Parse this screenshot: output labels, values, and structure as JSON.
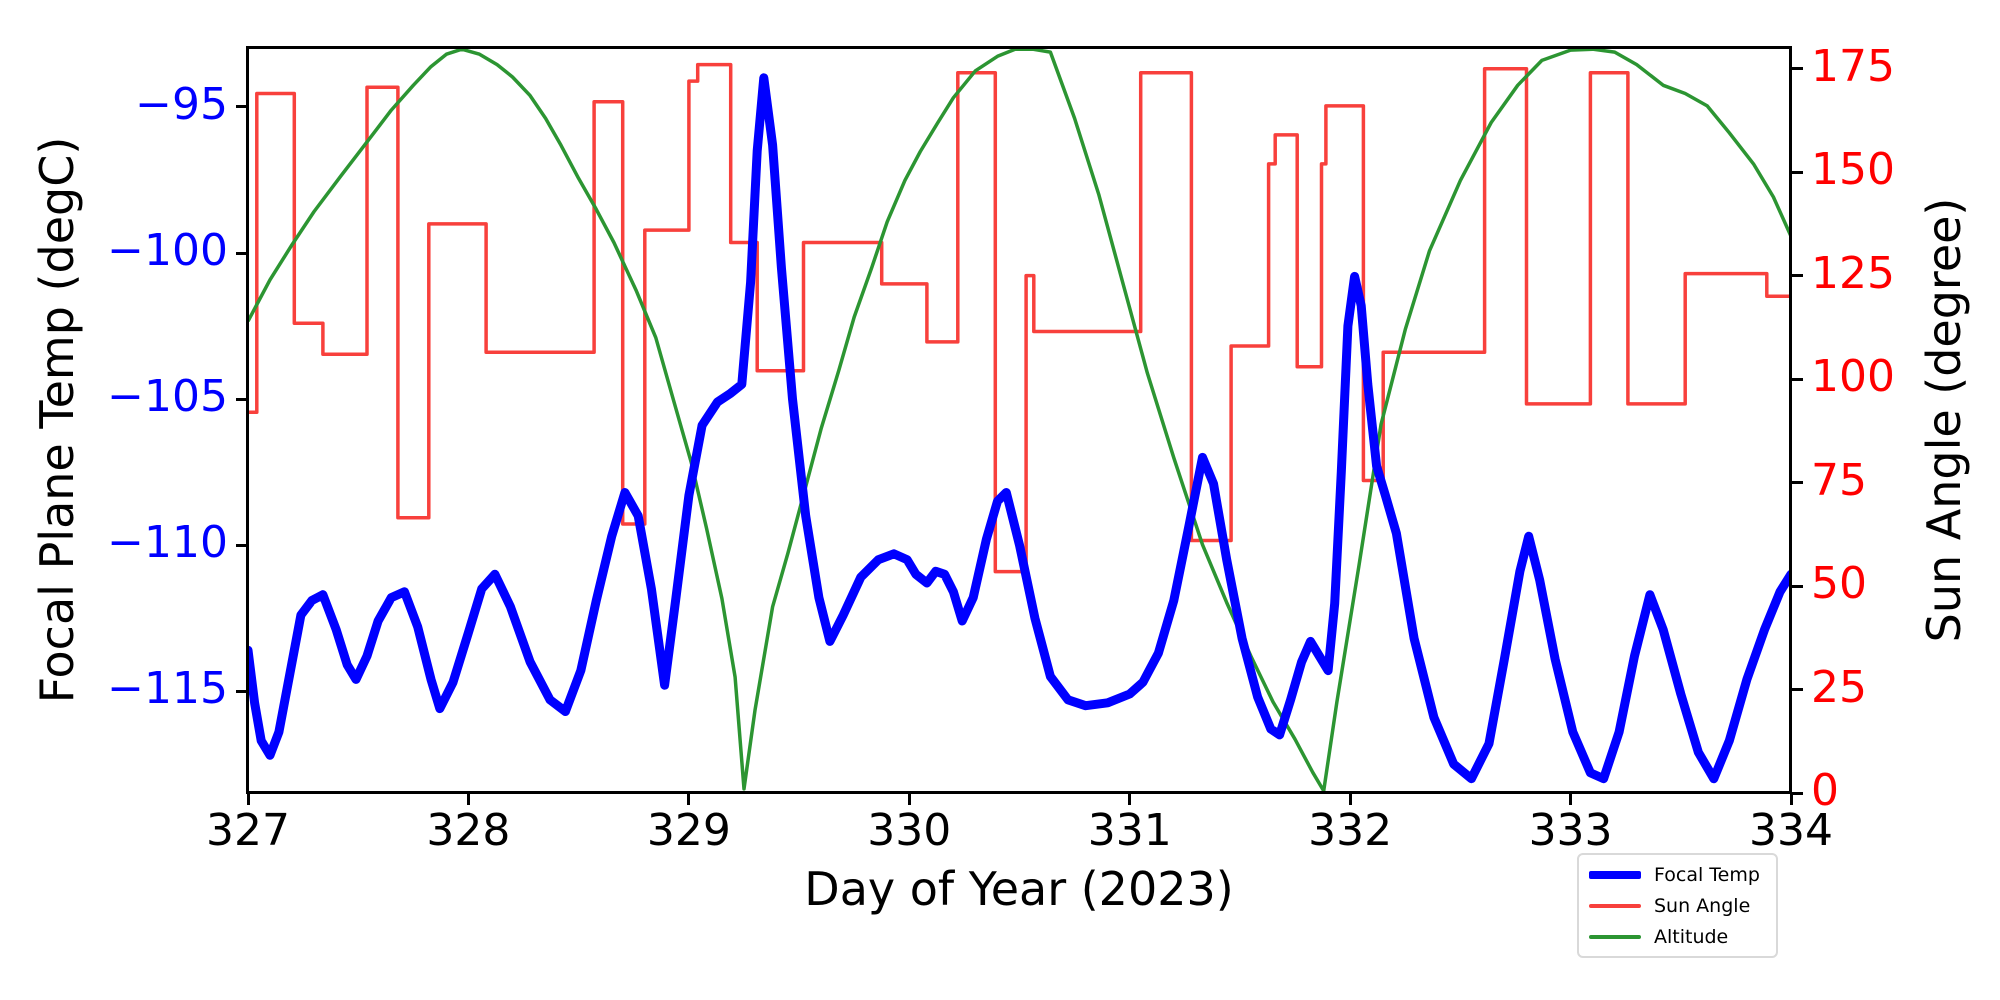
{
  "axes": {
    "xlabel": "Day of Year (2023)",
    "ylabel_left": "Focal Plane Temp (degC)",
    "ylabel_right": "Sun Angle (degree)",
    "x_ticks": [
      {
        "value": 327,
        "label": "327"
      },
      {
        "value": 328,
        "label": "328"
      },
      {
        "value": 329,
        "label": "329"
      },
      {
        "value": 330,
        "label": "330"
      },
      {
        "value": 331,
        "label": "331"
      },
      {
        "value": 332,
        "label": "332"
      },
      {
        "value": 333,
        "label": "333"
      },
      {
        "value": 334,
        "label": "334"
      }
    ],
    "y_ticks_left": [
      {
        "value": -95,
        "label": "−95"
      },
      {
        "value": -100,
        "label": "−100"
      },
      {
        "value": -105,
        "label": "−105"
      },
      {
        "value": -110,
        "label": "−110"
      },
      {
        "value": -115,
        "label": "−115"
      }
    ],
    "y_ticks_right": [
      {
        "value": 0,
        "label": "0"
      },
      {
        "value": 25,
        "label": "25"
      },
      {
        "value": 50,
        "label": "50"
      },
      {
        "value": 75,
        "label": "75"
      },
      {
        "value": 100,
        "label": "100"
      },
      {
        "value": 125,
        "label": "125"
      },
      {
        "value": 150,
        "label": "150"
      },
      {
        "value": 175,
        "label": "175"
      }
    ],
    "tick_color_left": "#0000ff",
    "tick_color_right": "#ff0000",
    "axis_color": "#000000"
  },
  "legend": {
    "items": [
      {
        "label": "Focal Temp",
        "color": "#0000ff",
        "thickness": 8
      },
      {
        "label": "Sun Angle",
        "color": "#f8403c",
        "thickness": 4
      },
      {
        "label": "Altitude",
        "color": "#2c9532",
        "thickness": 4
      }
    ]
  },
  "chart_data": {
    "type": "line",
    "xlabel": "Day of Year (2023)",
    "ylabel_left": "Focal Plane Temp (degC)",
    "ylabel_right": "Sun Angle (degree)",
    "xlim": [
      327,
      334
    ],
    "ylim_left": [
      -118.49,
      -92.98
    ],
    "ylim_right": [
      0,
      180
    ],
    "grid": false,
    "legend_position": "lower-right-outside",
    "series": [
      {
        "name": "Focal Temp",
        "axis": "left",
        "color": "#0000ff",
        "linewidth": 9,
        "style": "line",
        "points": [
          [
            327.0,
            -113.6
          ],
          [
            327.03,
            -115.4
          ],
          [
            327.06,
            -116.7
          ],
          [
            327.1,
            -117.2
          ],
          [
            327.14,
            -116.4
          ],
          [
            327.19,
            -114.4
          ],
          [
            327.24,
            -112.4
          ],
          [
            327.29,
            -111.9
          ],
          [
            327.34,
            -111.7
          ],
          [
            327.4,
            -112.9
          ],
          [
            327.45,
            -114.1
          ],
          [
            327.49,
            -114.6
          ],
          [
            327.54,
            -113.8
          ],
          [
            327.59,
            -112.6
          ],
          [
            327.65,
            -111.8
          ],
          [
            327.71,
            -111.6
          ],
          [
            327.77,
            -112.8
          ],
          [
            327.83,
            -114.6
          ],
          [
            327.87,
            -115.6
          ],
          [
            327.93,
            -114.7
          ],
          [
            328.0,
            -113.0
          ],
          [
            328.06,
            -111.5
          ],
          [
            328.12,
            -111.0
          ],
          [
            328.19,
            -112.1
          ],
          [
            328.28,
            -114.0
          ],
          [
            328.37,
            -115.3
          ],
          [
            328.44,
            -115.7
          ],
          [
            328.51,
            -114.3
          ],
          [
            328.58,
            -111.9
          ],
          [
            328.65,
            -109.7
          ],
          [
            328.71,
            -108.2
          ],
          [
            328.77,
            -109.0
          ],
          [
            328.83,
            -111.5
          ],
          [
            328.89,
            -114.8
          ],
          [
            328.94,
            -111.9
          ],
          [
            329.0,
            -108.3
          ],
          [
            329.06,
            -105.9
          ],
          [
            329.13,
            -105.1
          ],
          [
            329.19,
            -104.8
          ],
          [
            329.24,
            -104.5
          ],
          [
            329.28,
            -101.0
          ],
          [
            329.31,
            -96.5
          ],
          [
            329.34,
            -94.0
          ],
          [
            329.38,
            -96.3
          ],
          [
            329.42,
            -100.5
          ],
          [
            329.47,
            -105.0
          ],
          [
            329.53,
            -109.0
          ],
          [
            329.59,
            -111.8
          ],
          [
            329.64,
            -113.3
          ],
          [
            329.7,
            -112.4
          ],
          [
            329.78,
            -111.1
          ],
          [
            329.86,
            -110.5
          ],
          [
            329.93,
            -110.3
          ],
          [
            329.99,
            -110.5
          ],
          [
            330.03,
            -111.0
          ],
          [
            330.08,
            -111.3
          ],
          [
            330.12,
            -110.9
          ],
          [
            330.16,
            -111.0
          ],
          [
            330.2,
            -111.6
          ],
          [
            330.24,
            -112.6
          ],
          [
            330.29,
            -111.8
          ],
          [
            330.35,
            -109.8
          ],
          [
            330.4,
            -108.5
          ],
          [
            330.44,
            -108.2
          ],
          [
            330.5,
            -110.0
          ],
          [
            330.57,
            -112.5
          ],
          [
            330.64,
            -114.5
          ],
          [
            330.72,
            -115.3
          ],
          [
            330.8,
            -115.5
          ],
          [
            330.9,
            -115.4
          ],
          [
            331.0,
            -115.1
          ],
          [
            331.06,
            -114.7
          ],
          [
            331.13,
            -113.7
          ],
          [
            331.2,
            -111.9
          ],
          [
            331.27,
            -109.3
          ],
          [
            331.33,
            -107.0
          ],
          [
            331.38,
            -107.9
          ],
          [
            331.44,
            -110.5
          ],
          [
            331.51,
            -113.2
          ],
          [
            331.58,
            -115.2
          ],
          [
            331.64,
            -116.3
          ],
          [
            331.68,
            -116.5
          ],
          [
            331.73,
            -115.3
          ],
          [
            331.78,
            -114.0
          ],
          [
            331.82,
            -113.3
          ],
          [
            331.86,
            -113.8
          ],
          [
            331.9,
            -114.3
          ],
          [
            331.93,
            -112.0
          ],
          [
            331.96,
            -107.5
          ],
          [
            331.99,
            -102.5
          ],
          [
            332.02,
            -100.8
          ],
          [
            332.05,
            -101.8
          ],
          [
            332.08,
            -104.5
          ],
          [
            332.12,
            -107.3
          ],
          [
            332.16,
            -108.3
          ],
          [
            332.21,
            -109.6
          ],
          [
            332.29,
            -113.2
          ],
          [
            332.38,
            -115.9
          ],
          [
            332.47,
            -117.5
          ],
          [
            332.55,
            -118.0
          ],
          [
            332.63,
            -116.8
          ],
          [
            332.7,
            -113.9
          ],
          [
            332.77,
            -110.9
          ],
          [
            332.81,
            -109.7
          ],
          [
            332.86,
            -111.2
          ],
          [
            332.93,
            -113.9
          ],
          [
            333.01,
            -116.4
          ],
          [
            333.09,
            -117.8
          ],
          [
            333.15,
            -118.0
          ],
          [
            333.22,
            -116.4
          ],
          [
            333.29,
            -113.8
          ],
          [
            333.36,
            -111.7
          ],
          [
            333.42,
            -112.9
          ],
          [
            333.5,
            -115.1
          ],
          [
            333.58,
            -117.1
          ],
          [
            333.65,
            -118.0
          ],
          [
            333.72,
            -116.7
          ],
          [
            333.8,
            -114.6
          ],
          [
            333.88,
            -112.9
          ],
          [
            333.95,
            -111.6
          ],
          [
            334.0,
            -111.0
          ]
        ]
      },
      {
        "name": "Sun Angle",
        "axis": "right",
        "color": "#f8403c",
        "linewidth": 3.5,
        "style": "step",
        "points": [
          [
            327.0,
            92
          ],
          [
            327.04,
            169
          ],
          [
            327.21,
            113.5
          ],
          [
            327.34,
            106
          ],
          [
            327.54,
            170.5
          ],
          [
            327.68,
            66.5
          ],
          [
            327.82,
            137.5
          ],
          [
            328.08,
            106.5
          ],
          [
            328.57,
            167
          ],
          [
            328.7,
            65
          ],
          [
            328.8,
            136
          ],
          [
            329.0,
            172
          ],
          [
            329.04,
            176
          ],
          [
            329.19,
            133
          ],
          [
            329.31,
            102
          ],
          [
            329.52,
            133
          ],
          [
            329.875,
            123
          ],
          [
            330.08,
            109
          ],
          [
            330.22,
            174
          ],
          [
            330.39,
            53.5
          ],
          [
            330.53,
            125
          ],
          [
            330.565,
            111.5
          ],
          [
            331.05,
            174
          ],
          [
            331.28,
            61
          ],
          [
            331.46,
            108
          ],
          [
            331.63,
            152
          ],
          [
            331.66,
            159
          ],
          [
            331.76,
            103
          ],
          [
            331.87,
            152
          ],
          [
            331.89,
            166
          ],
          [
            332.06,
            75.5
          ],
          [
            332.15,
            106.5
          ],
          [
            332.61,
            175
          ],
          [
            332.8,
            94
          ],
          [
            333.09,
            174
          ],
          [
            333.26,
            94
          ],
          [
            333.52,
            125.5
          ],
          [
            333.89,
            120
          ],
          [
            334.0,
            120
          ]
        ]
      },
      {
        "name": "Altitude",
        "axis": "right",
        "color": "#2c9532",
        "linewidth": 3.5,
        "style": "line",
        "points": [
          [
            327.0,
            114
          ],
          [
            327.1,
            124
          ],
          [
            327.2,
            132.5
          ],
          [
            327.3,
            140.5
          ],
          [
            327.42,
            149
          ],
          [
            327.55,
            158
          ],
          [
            327.65,
            165
          ],
          [
            327.75,
            171
          ],
          [
            327.83,
            175.5
          ],
          [
            327.9,
            178.5
          ],
          [
            327.97,
            179.7
          ],
          [
            328.05,
            178.5
          ],
          [
            328.13,
            176
          ],
          [
            328.2,
            173
          ],
          [
            328.28,
            168.5
          ],
          [
            328.35,
            163
          ],
          [
            328.42,
            156.5
          ],
          [
            328.5,
            148.5
          ],
          [
            328.58,
            141
          ],
          [
            328.66,
            133
          ],
          [
            328.76,
            121.5
          ],
          [
            328.85,
            110
          ],
          [
            328.93,
            95
          ],
          [
            329.01,
            80
          ],
          [
            329.08,
            64
          ],
          [
            329.15,
            47
          ],
          [
            329.21,
            28
          ],
          [
            329.25,
            1
          ],
          [
            329.3,
            20
          ],
          [
            329.38,
            45
          ],
          [
            329.45,
            58
          ],
          [
            329.53,
            74
          ],
          [
            329.6,
            88
          ],
          [
            329.68,
            102
          ],
          [
            329.75,
            115
          ],
          [
            329.83,
            127
          ],
          [
            329.9,
            138
          ],
          [
            329.98,
            148
          ],
          [
            330.05,
            155
          ],
          [
            330.13,
            162
          ],
          [
            330.2,
            168
          ],
          [
            330.3,
            174.5
          ],
          [
            330.4,
            178
          ],
          [
            330.48,
            179.7
          ],
          [
            330.56,
            179.7
          ],
          [
            330.64,
            179
          ],
          [
            330.75,
            163
          ],
          [
            330.86,
            144.5
          ],
          [
            330.97,
            123
          ],
          [
            331.08,
            101.5
          ],
          [
            331.2,
            81
          ],
          [
            331.33,
            60
          ],
          [
            331.44,
            46
          ],
          [
            331.55,
            33
          ],
          [
            331.65,
            22
          ],
          [
            331.75,
            13
          ],
          [
            331.83,
            5
          ],
          [
            331.88,
            0.5
          ],
          [
            331.94,
            22
          ],
          [
            332.04,
            55
          ],
          [
            332.14,
            89
          ],
          [
            332.25,
            112
          ],
          [
            332.36,
            131
          ],
          [
            332.5,
            148
          ],
          [
            332.64,
            162
          ],
          [
            332.76,
            171
          ],
          [
            332.87,
            177
          ],
          [
            333.0,
            179.5
          ],
          [
            333.1,
            179.7
          ],
          [
            333.2,
            179
          ],
          [
            333.3,
            176
          ],
          [
            333.42,
            171
          ],
          [
            333.52,
            169
          ],
          [
            333.62,
            166
          ],
          [
            333.72,
            159.5
          ],
          [
            333.83,
            152
          ],
          [
            333.92,
            144
          ],
          [
            334.0,
            134.5
          ]
        ]
      }
    ]
  }
}
